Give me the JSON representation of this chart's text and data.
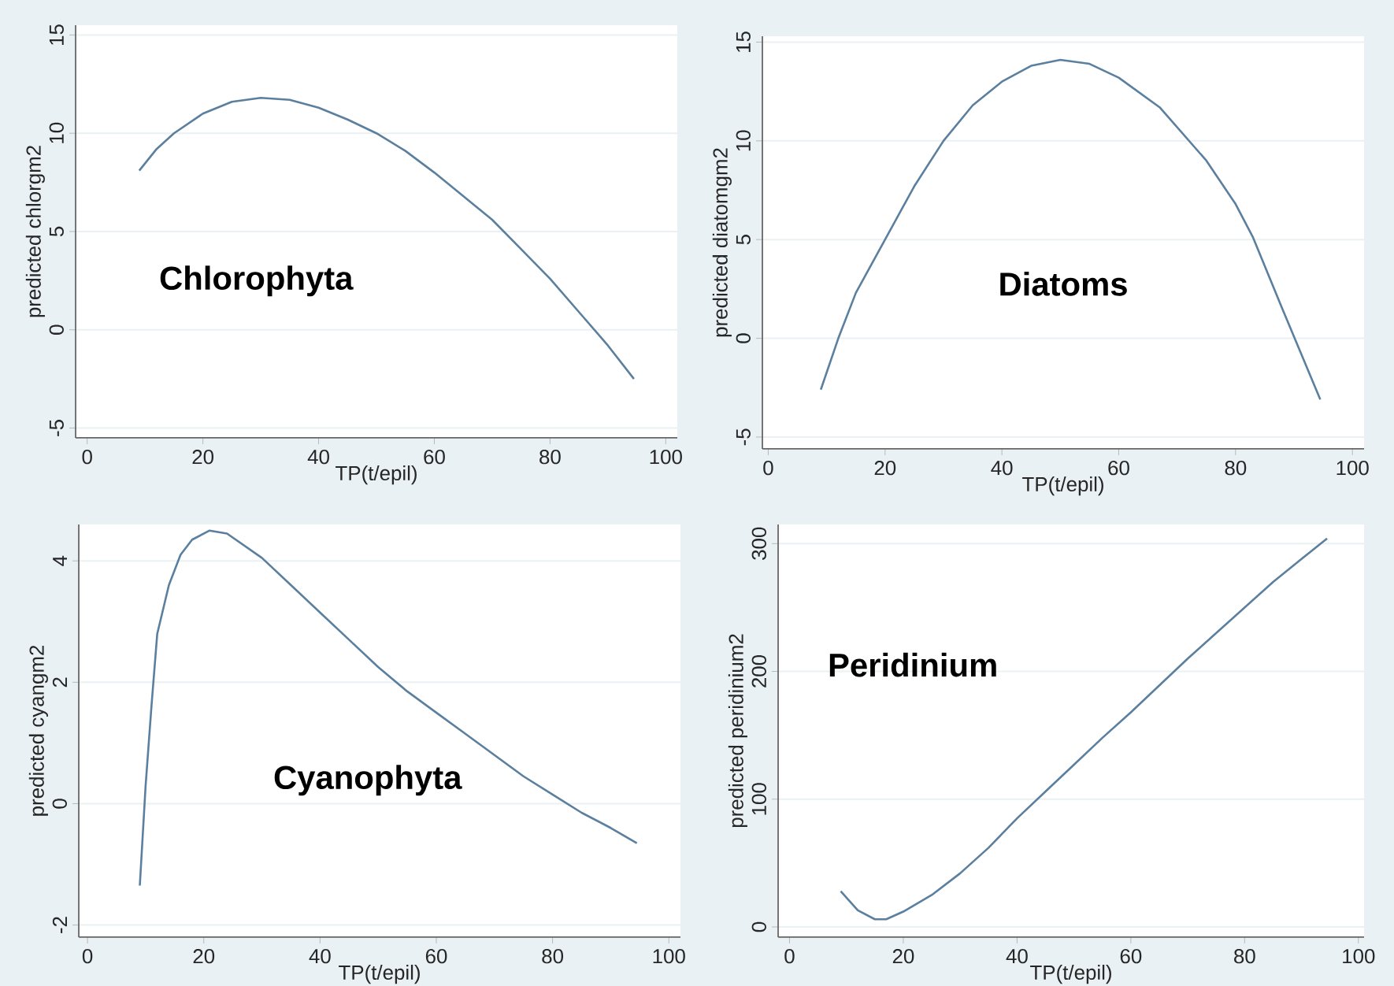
{
  "chart_data": [
    {
      "type": "line",
      "color": "#5b7f9e",
      "grid": "y",
      "xlabel": "TP(t/epil)",
      "ylabel": "predicted chlorgm2",
      "annotations": [
        "Chlorophyta"
      ],
      "xlim": [
        -2,
        102
      ],
      "ylim": [
        -5.5,
        15.5
      ],
      "xticks": [
        0,
        20,
        40,
        60,
        80,
        100
      ],
      "yticks": [
        -5,
        0,
        5,
        10,
        15
      ],
      "x": [
        9,
        12,
        15,
        20,
        25,
        30,
        35,
        40,
        45,
        50,
        55,
        60,
        65,
        70,
        75,
        80,
        85,
        90,
        94.5
      ],
      "values": [
        8.1,
        9.2,
        10.0,
        11.0,
        11.6,
        11.8,
        11.7,
        11.3,
        10.7,
        10.0,
        9.1,
        8.0,
        6.8,
        5.6,
        4.1,
        2.6,
        0.9,
        -0.8,
        -2.5
      ]
    },
    {
      "type": "line",
      "color": "#5b7f9e",
      "grid": "y",
      "xlabel": "TP(t/epil)",
      "ylabel": "predicted diatomgm2",
      "annotations": [
        "Diatoms"
      ],
      "xlim": [
        -1,
        102
      ],
      "ylim": [
        -5.6,
        15.3
      ],
      "xticks": [
        0,
        20,
        40,
        60,
        80,
        100
      ],
      "yticks": [
        -5,
        0,
        5,
        10,
        15
      ],
      "x": [
        9,
        12,
        15,
        20,
        25,
        30,
        35,
        40,
        45,
        50,
        55,
        60,
        67,
        75,
        80,
        83,
        88,
        94.5
      ],
      "values": [
        -2.6,
        0,
        2.3,
        5.0,
        7.7,
        10.0,
        11.8,
        13.0,
        13.8,
        14.1,
        13.9,
        13.2,
        11.7,
        9.0,
        6.8,
        5.1,
        1.5,
        -3.1
      ]
    },
    {
      "type": "line",
      "color": "#5b7f9e",
      "grid": "y",
      "xlabel": "TP(t/epil)",
      "ylabel": "predicted cyangm2",
      "annotations": [
        "Cyanophyta"
      ],
      "xlim": [
        -1.5,
        102
      ],
      "ylim": [
        -2.2,
        4.6
      ],
      "xticks": [
        0,
        20,
        40,
        60,
        80,
        100
      ],
      "yticks": [
        -2,
        0,
        2,
        4
      ],
      "x": [
        9,
        10,
        11,
        12,
        14,
        16,
        18,
        21,
        24,
        30,
        35,
        40,
        45,
        50,
        55,
        60,
        65,
        70,
        75,
        80,
        85,
        90,
        94.5
      ],
      "values": [
        -1.35,
        0.3,
        1.6,
        2.8,
        3.6,
        4.1,
        4.35,
        4.5,
        4.45,
        4.05,
        3.6,
        3.15,
        2.7,
        2.25,
        1.85,
        1.5,
        1.15,
        0.8,
        0.45,
        0.15,
        -0.15,
        -0.4,
        -0.65
      ]
    },
    {
      "type": "line",
      "color": "#5b7f9e",
      "grid": "y",
      "xlabel": "TP(t/epil)",
      "ylabel": "predicted peridinium2",
      "annotations": [
        "Peridinium"
      ],
      "xlim": [
        -2,
        101
      ],
      "ylim": [
        -8,
        315
      ],
      "xticks": [
        0,
        20,
        40,
        60,
        80,
        100
      ],
      "yticks": [
        0,
        100,
        200,
        300
      ],
      "x": [
        9,
        12,
        15,
        17,
        20,
        25,
        30,
        35,
        40,
        45,
        50,
        55,
        60,
        65,
        70,
        75,
        80,
        85,
        90,
        94.5
      ],
      "values": [
        28,
        13,
        6,
        6,
        12,
        25,
        42,
        62,
        85,
        106,
        127,
        148,
        168,
        189,
        210,
        230,
        250,
        270,
        288,
        304
      ]
    }
  ]
}
